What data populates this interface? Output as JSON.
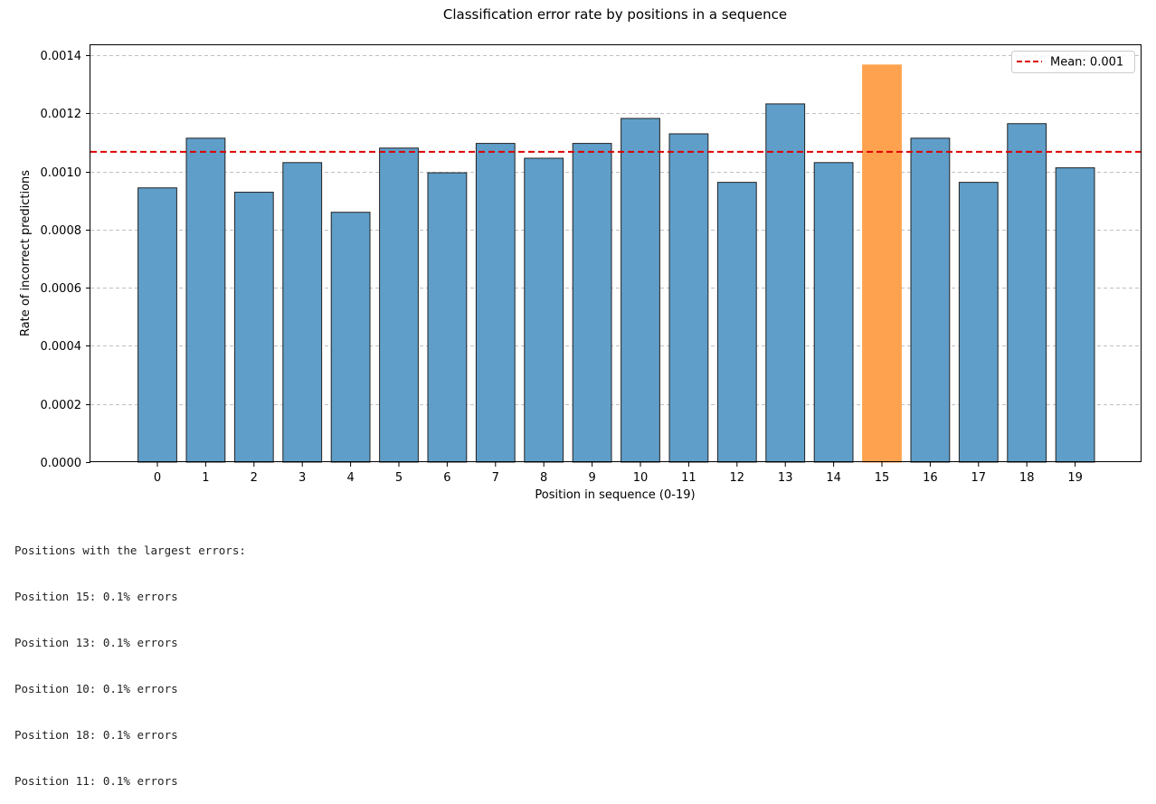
{
  "chart_data": {
    "type": "bar",
    "title": "Classification error rate by positions in a sequence",
    "xlabel": "Position in sequence (0-19)",
    "ylabel": "Rate of incorrect predictions",
    "categories": [
      "0",
      "1",
      "2",
      "3",
      "4",
      "5",
      "6",
      "7",
      "8",
      "9",
      "10",
      "11",
      "12",
      "13",
      "14",
      "15",
      "16",
      "17",
      "18",
      "19"
    ],
    "values": [
      0.000944,
      0.001115,
      0.000929,
      0.001031,
      0.00086,
      0.001081,
      0.000996,
      0.001097,
      0.001046,
      0.001097,
      0.001183,
      0.00113,
      0.000963,
      0.001233,
      0.001031,
      0.001367,
      0.001115,
      0.000963,
      0.001165,
      0.001013
    ],
    "highlight_index": 15,
    "mean": 0.001068,
    "legend": {
      "label": "Mean: 0.001",
      "position": "top-right"
    },
    "ylim": [
      0,
      0.001435
    ],
    "yticks": [
      "0.0000",
      "0.0002",
      "0.0004",
      "0.0006",
      "0.0008",
      "0.0010",
      "0.0012",
      "0.0014"
    ],
    "ytick_values": [
      0,
      0.0002,
      0.0004,
      0.0006,
      0.0008,
      0.001,
      0.0012,
      0.0014
    ],
    "grid": "y-dashed",
    "colors": {
      "bar": "#5f9ec9",
      "highlight": "#ffa24f",
      "mean_line": "#dd0000",
      "bar_edge": "#222222",
      "grid": "#c0c0c0"
    }
  },
  "notes": {
    "heading": "Positions with the largest errors:",
    "lines": [
      "Position 15: 0.1% errors",
      "Position 13: 0.1% errors",
      "Position 10: 0.1% errors",
      "Position 18: 0.1% errors",
      "Position 11: 0.1% errors"
    ]
  }
}
